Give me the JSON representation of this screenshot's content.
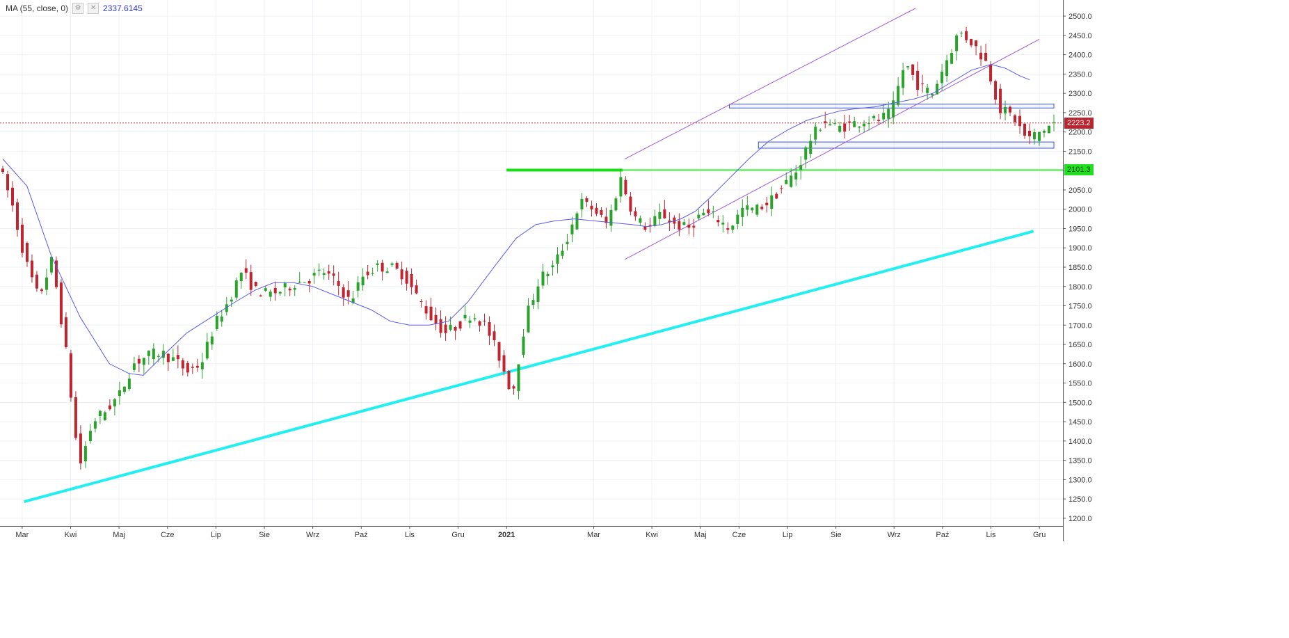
{
  "legend": {
    "label": "MA (55, close, 0)",
    "value": "2337.6145"
  },
  "price_tags": {
    "last": "2223.2",
    "level": "2101.3"
  },
  "colors": {
    "up": "#2aa32a",
    "down": "#c0242e",
    "ma": "#5a5af0",
    "cyan_trend": "#22f0f0",
    "green_level": "#14e014",
    "channel": "#a05ad8",
    "zone": "#3b55c9",
    "last_line": "#b8252f",
    "grid": "#eef1f4",
    "axis_text": "#333333"
  },
  "chart_data": {
    "type": "candlestick",
    "y_range": [
      1180,
      2520
    ],
    "y_ticks": [
      1200,
      1250,
      1300,
      1350,
      1400,
      1450,
      1500,
      1550,
      1600,
      1650,
      1700,
      1750,
      1800,
      1850,
      1900,
      1950,
      2000,
      2050,
      2100,
      2150,
      2200,
      2250,
      2300,
      2350,
      2400,
      2450,
      2500
    ],
    "x_ticks": [
      {
        "label": "Mar",
        "t": 2
      },
      {
        "label": "Kwi",
        "t": 7
      },
      {
        "label": "Maj",
        "t": 12
      },
      {
        "label": "Cze",
        "t": 17
      },
      {
        "label": "Lip",
        "t": 22
      },
      {
        "label": "Sie",
        "t": 27
      },
      {
        "label": "Wrz",
        "t": 32
      },
      {
        "label": "Paź",
        "t": 37
      },
      {
        "label": "Lis",
        "t": 42
      },
      {
        "label": "Gru",
        "t": 47
      },
      {
        "label": "2021",
        "t": 52,
        "bold": true
      },
      {
        "label": "Mar",
        "t": 61
      },
      {
        "label": "Kwi",
        "t": 67
      },
      {
        "label": "Maj",
        "t": 72
      },
      {
        "label": "Cze",
        "t": 76
      },
      {
        "label": "Lip",
        "t": 81
      },
      {
        "label": "Sie",
        "t": 86
      },
      {
        "label": "Wrz",
        "t": 92
      },
      {
        "label": "Paź",
        "t": 97
      },
      {
        "label": "Lis",
        "t": 102
      },
      {
        "label": "Gru",
        "t": 107
      }
    ],
    "t_span": [
      0,
      109
    ],
    "closes": [
      2120,
      2020,
      1870,
      1770,
      1870,
      1640,
      1330,
      1450,
      1480,
      1520,
      1600,
      1620,
      1630,
      1610,
      1580,
      1600,
      1700,
      1760,
      1840,
      1790,
      1780,
      1790,
      1810,
      1820,
      1840,
      1810,
      1760,
      1830,
      1850,
      1850,
      1830,
      1770,
      1720,
      1680,
      1700,
      1730,
      1700,
      1620,
      1520,
      1720,
      1820,
      1850,
      1920,
      2020,
      2000,
      1960,
      2080,
      1980,
      1950,
      1990,
      1960,
      1950,
      1990,
      1980,
      1950,
      2000,
      2000,
      2020,
      2060,
      2100,
      2180,
      2230,
      2210,
      2220,
      2230,
      2230,
      2250,
      2380,
      2320,
      2300,
      2380,
      2460,
      2430,
      2380,
      2260,
      2240,
      2180,
      2200,
      2223
    ],
    "ma": [
      [
        0,
        2130
      ],
      [
        2.5,
        2060
      ],
      [
        5,
        1880
      ],
      [
        8,
        1720
      ],
      [
        11,
        1600
      ],
      [
        13,
        1575
      ],
      [
        14.5,
        1570
      ],
      [
        16.5,
        1620
      ],
      [
        19,
        1680
      ],
      [
        21.5,
        1720
      ],
      [
        24,
        1760
      ],
      [
        26,
        1790
      ],
      [
        28,
        1810
      ],
      [
        30,
        1810
      ],
      [
        32,
        1800
      ],
      [
        34,
        1780
      ],
      [
        36,
        1760
      ],
      [
        38,
        1740
      ],
      [
        40,
        1710
      ],
      [
        42,
        1700
      ],
      [
        44,
        1700
      ],
      [
        46,
        1710
      ],
      [
        48,
        1760
      ],
      [
        51,
        1860
      ],
      [
        53,
        1925
      ],
      [
        55,
        1960
      ],
      [
        57,
        1970
      ],
      [
        59,
        1975
      ],
      [
        61,
        1970
      ],
      [
        63,
        1965
      ],
      [
        65,
        1960
      ],
      [
        66.5,
        1955
      ],
      [
        68,
        1960
      ],
      [
        70,
        1975
      ],
      [
        71.5,
        1995
      ],
      [
        73,
        2030
      ],
      [
        75,
        2080
      ],
      [
        77,
        2130
      ],
      [
        79,
        2175
      ],
      [
        81,
        2205
      ],
      [
        83,
        2230
      ],
      [
        85,
        2245
      ],
      [
        86.5,
        2255
      ],
      [
        88,
        2260
      ],
      [
        90,
        2265
      ],
      [
        92,
        2275
      ],
      [
        94,
        2285
      ],
      [
        96,
        2300
      ],
      [
        98,
        2330
      ],
      [
        100,
        2360
      ],
      [
        102,
        2375
      ],
      [
        103.5,
        2365
      ],
      [
        105,
        2345
      ],
      [
        106,
        2335
      ]
    ],
    "level_line": 2101.3,
    "last_price": 2223.2,
    "trend_line": [
      [
        2.2,
        1243
      ],
      [
        106.4,
        1943
      ]
    ],
    "channel_lower": [
      [
        64.2,
        1870
      ],
      [
        107,
        2440
      ]
    ],
    "channel_upper": [
      [
        64.2,
        2130
      ],
      [
        94.2,
        2520
      ]
    ],
    "zones": [
      [
        75,
        2262,
        108.5,
        2272
      ],
      [
        78,
        2158,
        108.5,
        2174
      ]
    ]
  }
}
